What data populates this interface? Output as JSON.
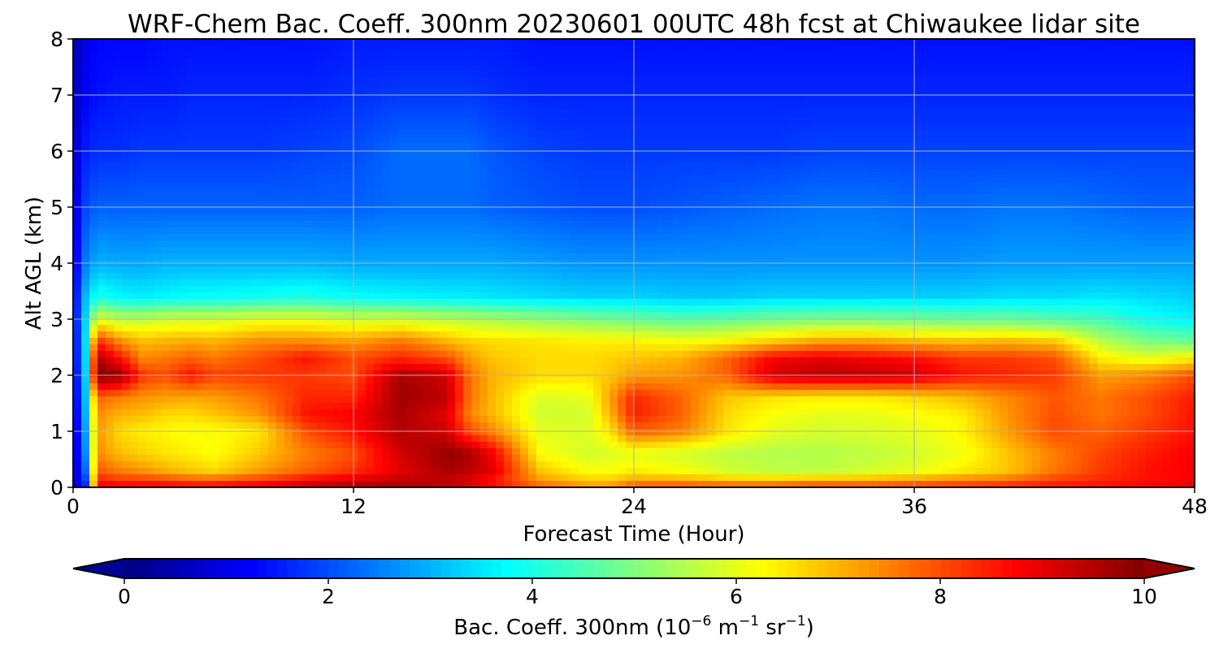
{
  "chart_data": {
    "type": "heatmap",
    "title": "WRF-Chem Bac. Coeff. 300nm  20230601 00UTC 48h fcst at Chiwaukee lidar site",
    "xlabel": "Forecast Time (Hour)",
    "ylabel": "Alt AGL (km)",
    "x_ticks": [
      "0",
      "12",
      "24",
      "36",
      "48"
    ],
    "y_ticks": [
      "0",
      "1",
      "2",
      "3",
      "4",
      "5",
      "6",
      "7",
      "8"
    ],
    "xlim": [
      0,
      48
    ],
    "ylim": [
      0,
      8
    ],
    "grid": true,
    "colormap": "jet",
    "colorbar": {
      "label_main": "Bac. Coeff. 300nm  (10",
      "label_exp1": "−6",
      "label_mid": " m",
      "label_exp2": "−1",
      "label_mid2": " sr",
      "label_exp3": "−1",
      "label_end": ")",
      "ticks": [
        "0",
        "2",
        "4",
        "6",
        "8",
        "10"
      ],
      "range": [
        0,
        10
      ],
      "extend": "both",
      "orientation": "horizontal",
      "placement": "bottom"
    },
    "x": [
      0,
      0.5,
      1,
      2,
      3,
      4,
      5,
      6,
      8,
      10,
      12,
      14,
      16,
      17,
      18,
      20,
      22,
      23,
      24,
      26,
      28,
      30,
      32,
      34,
      36,
      38,
      40,
      42,
      44,
      46,
      48
    ],
    "y": [
      0,
      0.1,
      0.3,
      0.6,
      1,
      1.3,
      1.6,
      2,
      2.3,
      2.6,
      3,
      3.4,
      4,
      5,
      6,
      7,
      8
    ],
    "z": [
      [
        0.8,
        1.2,
        8.9,
        9.0,
        9.0,
        9.0,
        9.0,
        9.0,
        9.2,
        9.5,
        9.8,
        9.8,
        9.6,
        9.3,
        8.8,
        8.0,
        7.5,
        7.5,
        8.2,
        8.3,
        8.2,
        8.2,
        8.4,
        8.3,
        8.4,
        8.5,
        8.6,
        8.7,
        8.7,
        8.8,
        9.0
      ],
      [
        0.5,
        1.5,
        8.6,
        8.3,
        8.3,
        8.2,
        8.0,
        8.0,
        8.3,
        8.8,
        9.2,
        9.4,
        9.3,
        9.0,
        8.5,
        7.3,
        6.8,
        6.8,
        7.2,
        7.2,
        7.0,
        7.0,
        7.2,
        7.2,
        7.4,
        7.6,
        7.8,
        8.2,
        8.4,
        8.6,
        8.8
      ],
      [
        0.5,
        2.0,
        7.9,
        7.5,
        7.3,
        7.0,
        6.8,
        6.6,
        7.2,
        7.8,
        8.3,
        9.0,
        9.6,
        9.4,
        9.0,
        6.8,
        6.2,
        6.2,
        6.4,
        6.2,
        5.8,
        5.6,
        5.6,
        5.8,
        6.0,
        6.4,
        6.8,
        7.6,
        8.2,
        8.6,
        8.8
      ],
      [
        0.6,
        2.4,
        7.4,
        6.9,
        6.7,
        6.5,
        6.4,
        6.2,
        6.8,
        7.5,
        8.0,
        9.2,
        9.8,
        9.6,
        8.8,
        6.2,
        5.8,
        5.9,
        6.0,
        5.8,
        5.6,
        5.5,
        5.5,
        5.6,
        5.8,
        6.1,
        6.8,
        7.5,
        8.1,
        8.5,
        8.8
      ],
      [
        0.6,
        2.6,
        7.3,
        6.6,
        6.4,
        6.3,
        6.2,
        6.2,
        6.5,
        8.0,
        8.6,
        9.5,
        9.2,
        8.0,
        7.4,
        6.0,
        5.9,
        6.5,
        7.8,
        7.5,
        6.5,
        6.0,
        5.8,
        5.9,
        6.0,
        6.3,
        7.2,
        8.0,
        7.8,
        8.2,
        8.6
      ],
      [
        0.6,
        2.8,
        7.4,
        7.0,
        6.9,
        6.6,
        6.6,
        6.8,
        7.3,
        8.6,
        8.8,
        9.6,
        9.0,
        7.4,
        6.9,
        5.8,
        5.8,
        7.0,
        8.5,
        7.8,
        6.6,
        6.2,
        6.0,
        6.0,
        6.2,
        6.4,
        7.3,
        8.0,
        7.6,
        8.0,
        8.6
      ],
      [
        0.7,
        2.9,
        7.8,
        7.5,
        7.3,
        7.2,
        7.1,
        7.2,
        7.6,
        8.4,
        8.4,
        9.7,
        9.4,
        7.6,
        6.9,
        5.9,
        6.0,
        7.2,
        8.4,
        7.8,
        6.8,
        6.5,
        6.4,
        6.4,
        6.6,
        6.9,
        7.4,
        7.9,
        7.6,
        8.0,
        8.5
      ],
      [
        0.8,
        3.0,
        10.0,
        9.8,
        8.2,
        8.0,
        8.6,
        8.1,
        8.2,
        8.2,
        8.0,
        9.6,
        9.2,
        7.6,
        7.0,
        6.6,
        6.6,
        6.8,
        7.2,
        7.3,
        7.8,
        9.2,
        9.4,
        9.4,
        9.2,
        8.6,
        8.4,
        8.2,
        7.2,
        7.4,
        8.0
      ],
      [
        0.9,
        3.1,
        9.6,
        8.6,
        7.4,
        7.6,
        7.8,
        7.6,
        8.0,
        8.6,
        8.0,
        8.4,
        8.0,
        7.2,
        6.8,
        6.6,
        6.6,
        6.7,
        6.8,
        7.0,
        7.8,
        8.8,
        9.0,
        8.8,
        8.6,
        8.2,
        8.2,
        8.0,
        6.4,
        6.0,
        6.4
      ],
      [
        0.9,
        3.2,
        8.4,
        7.4,
        6.9,
        7.0,
        7.1,
        7.0,
        7.4,
        7.4,
        7.2,
        7.6,
        7.0,
        6.7,
        6.6,
        6.5,
        6.4,
        6.4,
        6.4,
        6.2,
        6.4,
        6.8,
        7.2,
        7.2,
        7.0,
        6.9,
        7.0,
        6.8,
        5.6,
        5.0,
        4.8
      ],
      [
        1.0,
        3.2,
        6.0,
        5.6,
        5.6,
        5.8,
        5.8,
        5.8,
        6.0,
        6.0,
        5.8,
        5.8,
        5.6,
        5.5,
        5.4,
        5.2,
        5.0,
        4.9,
        4.8,
        4.6,
        4.7,
        4.9,
        5.0,
        5.0,
        4.9,
        4.8,
        4.8,
        4.6,
        4.4,
        3.9,
        3.6
      ],
      [
        0.9,
        3.0,
        4.0,
        3.7,
        3.6,
        3.7,
        3.8,
        3.8,
        3.9,
        4.0,
        3.8,
        3.7,
        3.6,
        3.6,
        3.5,
        3.4,
        3.3,
        3.3,
        3.3,
        3.2,
        3.2,
        3.3,
        3.3,
        3.3,
        3.3,
        3.3,
        3.4,
        3.4,
        3.5,
        3.4,
        3.3
      ],
      [
        0.8,
        2.4,
        3.0,
        2.9,
        2.9,
        3.0,
        3.0,
        3.0,
        3.0,
        3.0,
        2.9,
        2.9,
        2.9,
        2.9,
        2.9,
        2.8,
        2.7,
        2.7,
        2.7,
        2.7,
        2.7,
        2.7,
        2.7,
        2.7,
        2.7,
        2.7,
        2.8,
        2.8,
        2.8,
        2.8,
        2.8
      ],
      [
        0.7,
        1.9,
        2.2,
        2.2,
        2.2,
        2.2,
        2.2,
        2.2,
        2.2,
        2.2,
        2.2,
        2.3,
        2.3,
        2.3,
        2.2,
        2.1,
        2.0,
        2.0,
        2.0,
        2.1,
        2.2,
        2.3,
        2.4,
        2.4,
        2.3,
        2.3,
        2.4,
        2.4,
        2.3,
        2.2,
        2.2
      ],
      [
        0.6,
        1.5,
        1.7,
        1.7,
        1.8,
        1.8,
        1.8,
        1.8,
        1.8,
        1.9,
        2.0,
        2.3,
        2.3,
        2.3,
        2.1,
        1.9,
        1.8,
        1.8,
        1.8,
        1.8,
        1.8,
        1.8,
        1.9,
        1.9,
        1.9,
        1.9,
        1.9,
        1.9,
        1.9,
        1.9,
        1.9
      ],
      [
        0.5,
        1.2,
        1.4,
        1.5,
        1.5,
        1.5,
        1.6,
        1.6,
        1.6,
        1.6,
        1.7,
        1.8,
        1.8,
        1.8,
        1.7,
        1.6,
        1.6,
        1.6,
        1.6,
        1.6,
        1.6,
        1.6,
        1.6,
        1.6,
        1.6,
        1.6,
        1.6,
        1.6,
        1.6,
        1.6,
        1.6
      ],
      [
        0.4,
        1.0,
        1.3,
        1.3,
        1.3,
        1.4,
        1.4,
        1.4,
        1.4,
        1.4,
        1.5,
        1.5,
        1.5,
        1.5,
        1.5,
        1.4,
        1.4,
        1.4,
        1.4,
        1.4,
        1.4,
        1.4,
        1.4,
        1.4,
        1.4,
        1.4,
        1.4,
        1.4,
        1.4,
        1.4,
        1.4
      ]
    ]
  }
}
